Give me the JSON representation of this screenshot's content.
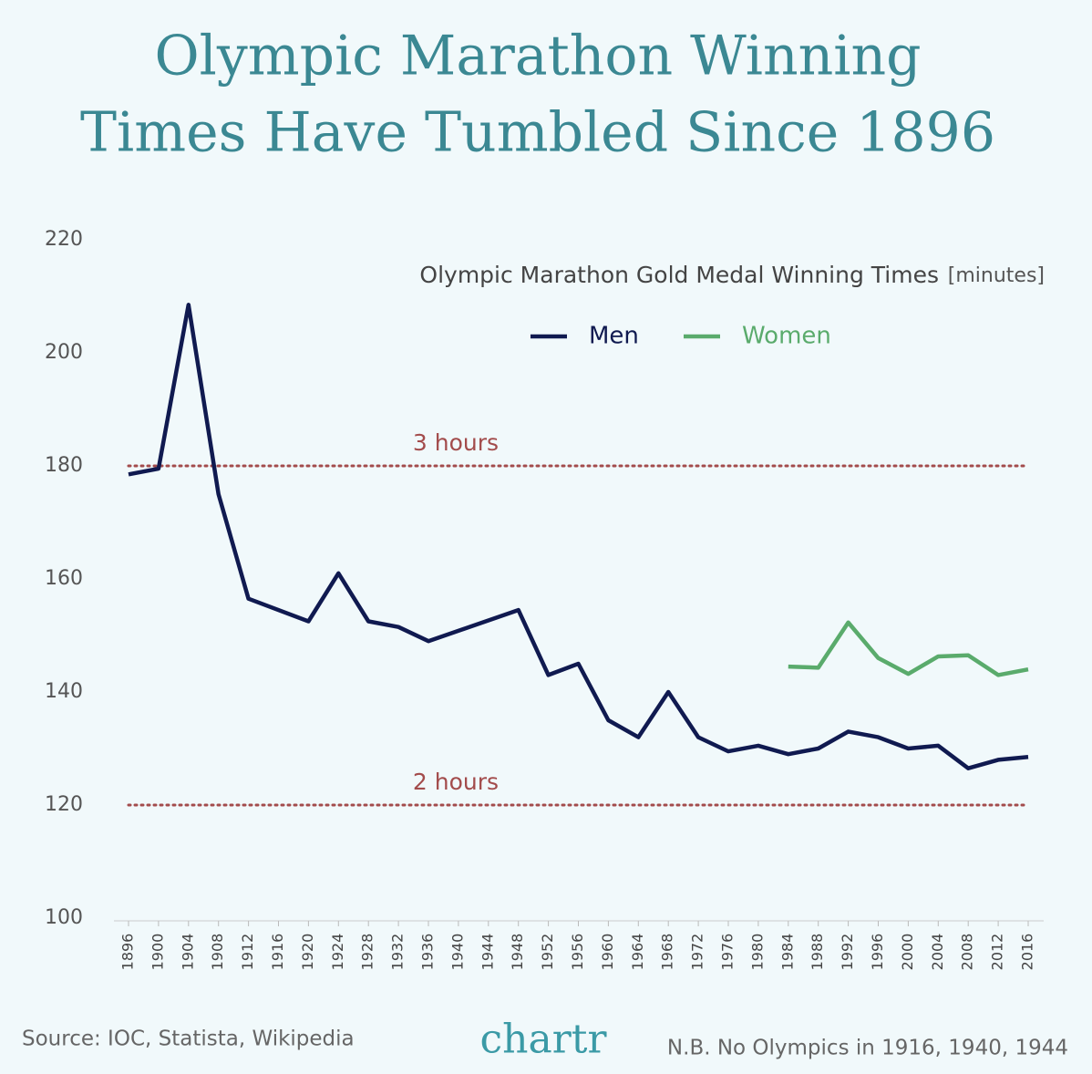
{
  "chart_data": {
    "type": "line",
    "title": [
      "Olympic Marathon Winning",
      "Times Have Tumbled Since 1896"
    ],
    "legend_title": "Olympic Marathon Gold Medal Winning Times",
    "legend_unit": "[minutes]",
    "xlim": [
      1896,
      2016
    ],
    "xticks": [
      1896,
      1900,
      1904,
      1908,
      1912,
      1916,
      1920,
      1924,
      1928,
      1932,
      1936,
      1940,
      1944,
      1948,
      1952,
      1956,
      1960,
      1964,
      1968,
      1972,
      1976,
      1980,
      1984,
      1988,
      1992,
      1996,
      2000,
      2004,
      2008,
      2012,
      2016
    ],
    "ylim": [
      100,
      220
    ],
    "yticks": [
      100,
      120,
      140,
      160,
      180,
      200,
      220
    ],
    "reference_lines": [
      {
        "value": 180,
        "label": "3 hours",
        "color": "#a34c4c"
      },
      {
        "value": 120,
        "label": "2 hours",
        "color": "#a34c4c"
      }
    ],
    "series": [
      {
        "name": "Men",
        "color": "#101a50",
        "x": [
          1896,
          1900,
          1904,
          1908,
          1912,
          1920,
          1924,
          1928,
          1932,
          1936,
          1948,
          1952,
          1956,
          1960,
          1964,
          1968,
          1972,
          1976,
          1980,
          1984,
          1988,
          1992,
          1996,
          2000,
          2004,
          2008,
          2012,
          2016
        ],
        "values": [
          178.5,
          179.5,
          208.5,
          175,
          156.5,
          152.5,
          161,
          152.5,
          151.5,
          149,
          154.5,
          143,
          145,
          135,
          132,
          140,
          132,
          129.5,
          130.5,
          129,
          130,
          133,
          132,
          130,
          130.5,
          126.5,
          128,
          128.5
        ]
      },
      {
        "name": "Women",
        "color": "#5aab6c",
        "x": [
          1984,
          1988,
          1992,
          1996,
          2000,
          2004,
          2008,
          2012,
          2016
        ],
        "values": [
          144.5,
          144.3,
          152.3,
          146,
          143.2,
          146.3,
          146.5,
          143,
          144
        ]
      }
    ],
    "source": "Source: IOC, Statista, Wikipedia",
    "brand": "chartr",
    "note": "N.B. No Olympics in 1916, 1940, 1944"
  }
}
